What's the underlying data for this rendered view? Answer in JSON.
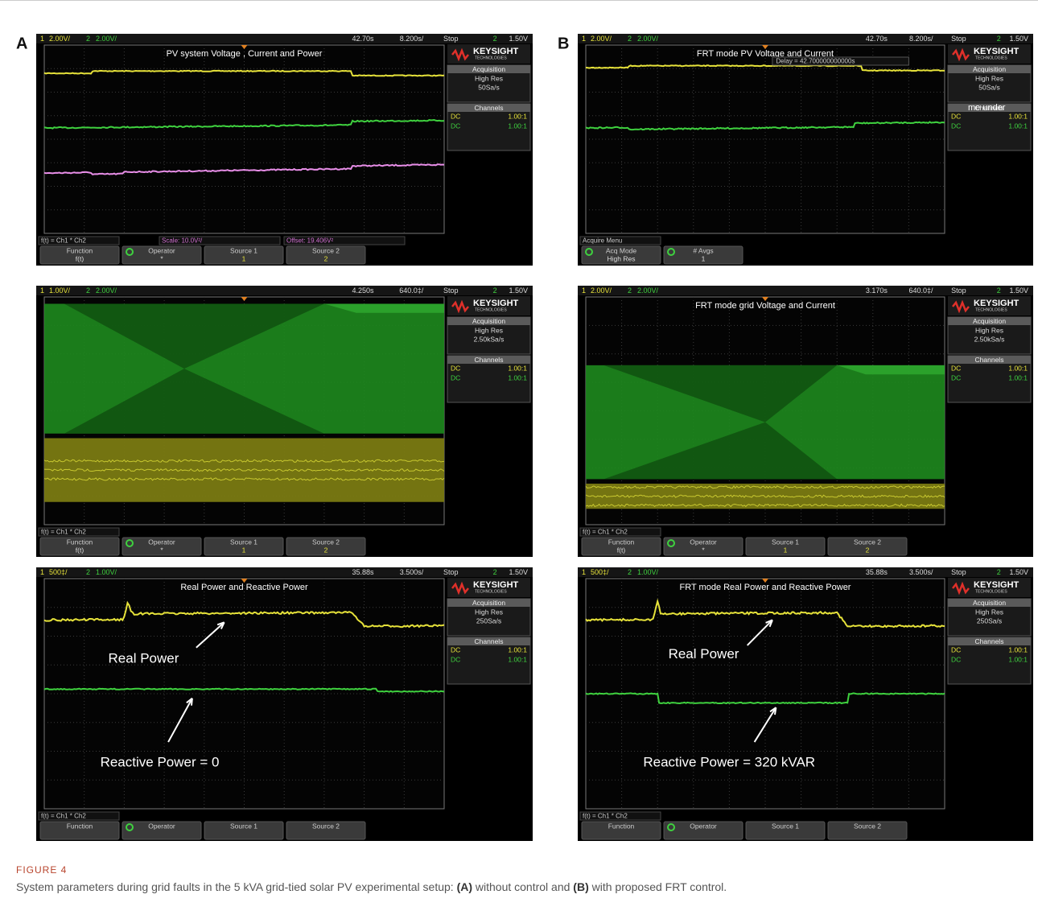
{
  "panel_labels": [
    "A",
    "B"
  ],
  "panels": [
    {
      "status": {
        "ch1": "1",
        "ch1_scale": "2.00V/",
        "ch2": "2",
        "ch2_scale": "2.00V/",
        "time": "42.70s",
        "timebase": "8.200s/",
        "run": "Stop",
        "trig_ch": "2",
        "trig": "1.50V"
      },
      "title": "PV system Voltage , Current and Power",
      "sidebar": {
        "brand": "KEYSIGHT",
        "brand_sub": "TECHNOLOGIES",
        "acquisition": "Acquisition",
        "mode": "High Res",
        "rate": "50Sa/s",
        "channels": "Channels",
        "rows": [
          [
            "DC",
            "1.00:1"
          ],
          [
            "DC",
            "1.00:1"
          ]
        ]
      },
      "func": [
        "f(t) = Ch1 * Ch2",
        "Scale: 10.0V²/",
        "Offset: 19.406V²"
      ],
      "softkeys": [
        {
          "label": "Function",
          "sub": "f(t)"
        },
        {
          "label": "Operator",
          "sub": "*"
        },
        {
          "label": "Source 1",
          "sub": "1"
        },
        {
          "label": "Source 2",
          "sub": "2"
        }
      ]
    },
    {
      "status": {
        "ch1": "1",
        "ch1_scale": "2.00V/",
        "ch2": "2",
        "ch2_scale": "2.00V/",
        "time": "42.70s",
        "timebase": "8.200s/",
        "run": "Stop",
        "trig_ch": "2",
        "trig": "1.50V"
      },
      "title": "FRT mode PV Voltage and Current",
      "delay": "Delay = 42.700000000000s",
      "overlay": "me under",
      "sidebar": {
        "brand": "KEYSIGHT",
        "brand_sub": "TECHNOLOGIES",
        "acquisition": "Acquisition",
        "mode": "High Res",
        "rate": "50Sa/s",
        "channels": "Channels",
        "rows": [
          [
            "DC",
            "1.00:1"
          ],
          [
            "DC",
            "1.00:1"
          ]
        ]
      },
      "func": [
        "Acquire Menu"
      ],
      "softkeys": [
        {
          "label": "Acq Mode",
          "sub": "High Res"
        },
        {
          "label": "# Avgs",
          "sub": "1"
        }
      ]
    },
    {
      "status": {
        "ch1": "1",
        "ch1_scale": "1.00V/",
        "ch2": "2",
        "ch2_scale": "2.00V/",
        "time": "4.250s",
        "timebase": "640.0‡/",
        "run": "Stop",
        "trig_ch": "2",
        "trig": "1.50V"
      },
      "sidebar": {
        "brand": "KEYSIGHT",
        "brand_sub": "TECHNOLOGIES",
        "acquisition": "Acquisition",
        "mode": "High Res",
        "rate": "2.50kSa/s",
        "channels": "Channels",
        "rows": [
          [
            "DC",
            "1.00:1"
          ],
          [
            "DC",
            "1.00:1"
          ]
        ]
      },
      "func": [
        "f(t) = Ch1 * Ch2"
      ],
      "softkeys": [
        {
          "label": "Function",
          "sub": "f(t)"
        },
        {
          "label": "Operator",
          "sub": "*"
        },
        {
          "label": "Source 1",
          "sub": "1"
        },
        {
          "label": "Source 2",
          "sub": "2"
        }
      ]
    },
    {
      "status": {
        "ch1": "1",
        "ch1_scale": "2.00V/",
        "ch2": "2",
        "ch2_scale": "2.00V/",
        "time": "3.170s",
        "timebase": "640.0‡/",
        "run": "Stop",
        "trig_ch": "2",
        "trig": "1.50V"
      },
      "title": "FRT mode grid Voltage and Current",
      "sidebar": {
        "brand": "KEYSIGHT",
        "brand_sub": "TECHNOLOGIES",
        "acquisition": "Acquisition",
        "mode": "High Res",
        "rate": "2.50kSa/s",
        "channels": "Channels",
        "rows": [
          [
            "DC",
            "1.00:1"
          ],
          [
            "DC",
            "1.00:1"
          ]
        ]
      },
      "func": [
        "f(t) = Ch1 * Ch2"
      ],
      "softkeys": [
        {
          "label": "Function",
          "sub": "f(t)"
        },
        {
          "label": "Operator",
          "sub": "*"
        },
        {
          "label": "Source 1",
          "sub": "1"
        },
        {
          "label": "Source 2",
          "sub": "2"
        }
      ]
    },
    {
      "status": {
        "ch1": "1",
        "ch1_scale": "500‡/",
        "ch2": "2",
        "ch2_scale": "1.00V/",
        "time": "35.88s",
        "timebase": "3.500s/",
        "run": "Stop",
        "trig_ch": "2",
        "trig": "1.50V"
      },
      "title": "Real Power and Reactive Power",
      "annotations": [
        "Real Power",
        "Reactive Power = 0"
      ],
      "sidebar": {
        "brand": "KEYSIGHT",
        "brand_sub": "TECHNOLOGIES",
        "acquisition": "Acquisition",
        "mode": "High Res",
        "rate": "250Sa/s",
        "channels": "Channels",
        "rows": [
          [
            "DC",
            "1.00:1"
          ],
          [
            "DC",
            "1.00:1"
          ]
        ]
      },
      "func": [
        "f(t) = Ch1 * Ch2"
      ],
      "softkeys": [
        {
          "label": "Function"
        },
        {
          "label": "Operator"
        },
        {
          "label": "Source 1"
        },
        {
          "label": "Source 2"
        }
      ]
    },
    {
      "status": {
        "ch1": "1",
        "ch1_scale": "500‡/",
        "ch2": "2",
        "ch2_scale": "1.00V/",
        "time": "35.88s",
        "timebase": "3.500s/",
        "run": "Stop",
        "trig_ch": "2",
        "trig": "1.50V"
      },
      "title": "FRT mode Real Power and Reactive Power",
      "annotations": [
        "Real Power",
        "Reactive Power = 320 kVAR"
      ],
      "sidebar": {
        "brand": "KEYSIGHT",
        "brand_sub": "TECHNOLOGIES",
        "acquisition": "Acquisition",
        "mode": "High Res",
        "rate": "250Sa/s",
        "channels": "Channels",
        "rows": [
          [
            "DC",
            "1.00:1"
          ],
          [
            "DC",
            "1.00:1"
          ]
        ]
      },
      "func": [
        "f(t) = Ch1 * Ch2"
      ],
      "softkeys": [
        {
          "label": "Function"
        },
        {
          "label": "Operator"
        },
        {
          "label": "Source 1"
        },
        {
          "label": "Source 2"
        }
      ]
    }
  ],
  "caption": {
    "figure": "FIGURE 4",
    "segments": [
      "System parameters during grid faults in the 5 kVA grid-tied solar PV experimental setup: ",
      "(A)",
      " without control and ",
      "(B)",
      " with proposed FRT control."
    ]
  }
}
